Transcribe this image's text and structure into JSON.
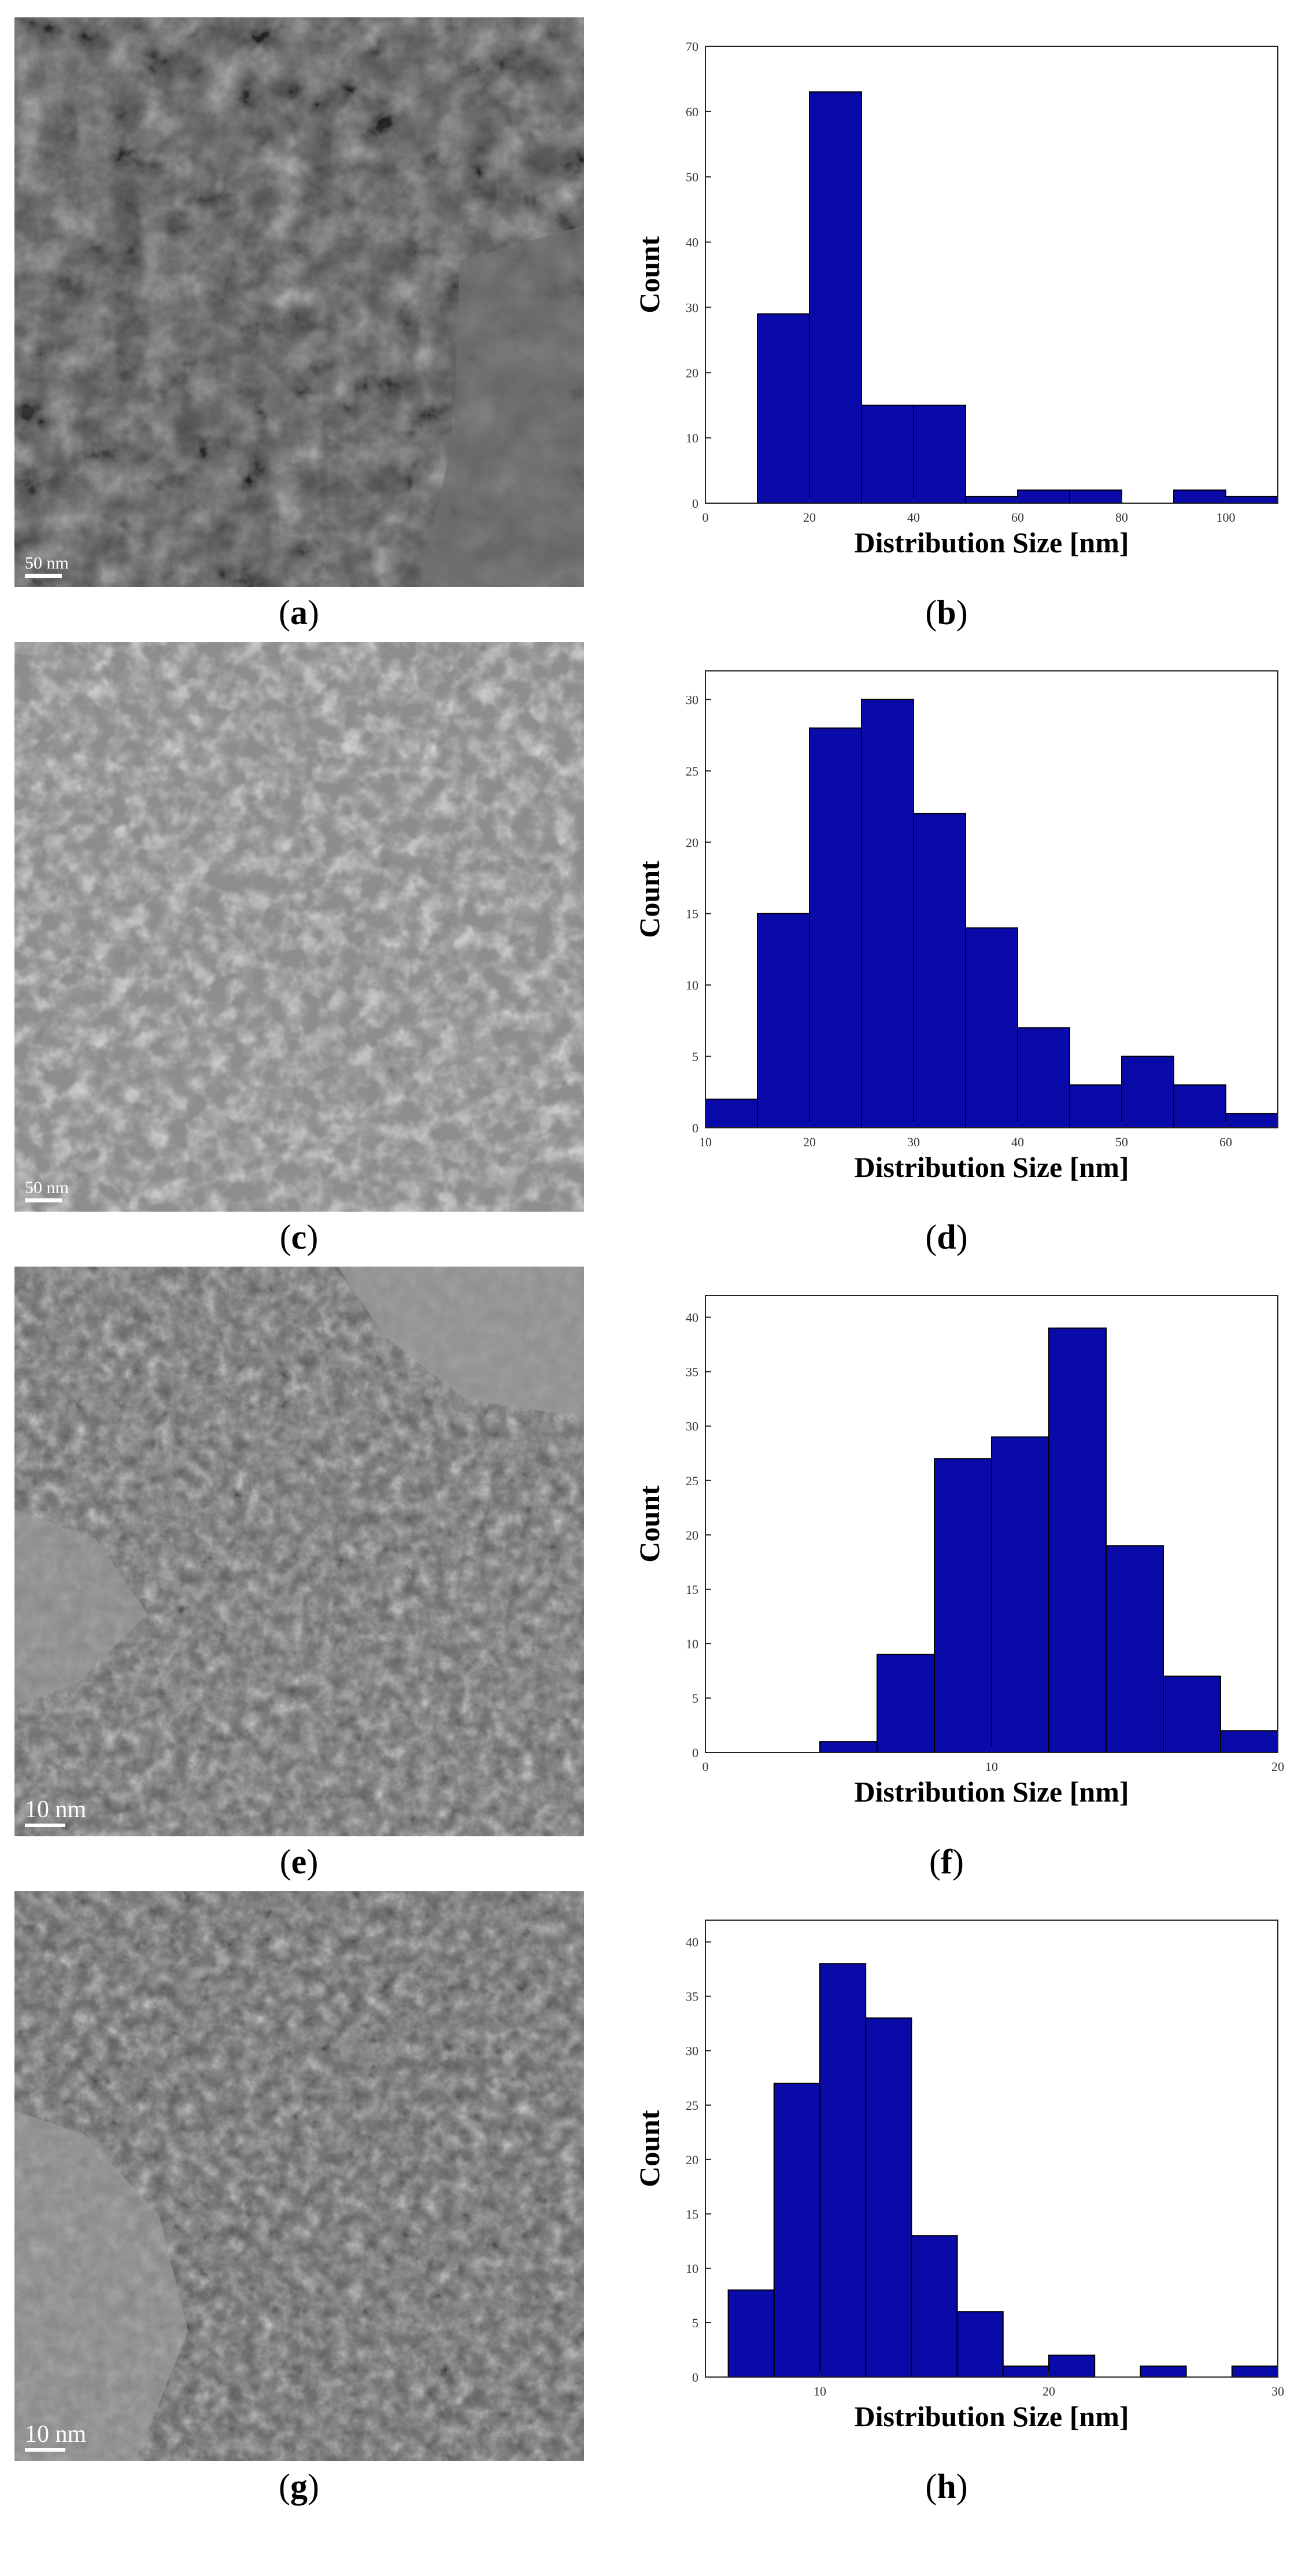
{
  "panels": [
    {
      "label": "a",
      "kind": "tem",
      "scale_bar": "50 nm"
    },
    {
      "label": "b",
      "kind": "histogram"
    },
    {
      "label": "c",
      "kind": "tem",
      "scale_bar": "50 nm"
    },
    {
      "label": "d",
      "kind": "histogram"
    },
    {
      "label": "e",
      "kind": "tem",
      "scale_bar": "10 nm"
    },
    {
      "label": "f",
      "kind": "histogram"
    },
    {
      "label": "g",
      "kind": "tem",
      "scale_bar": "10 nm"
    },
    {
      "label": "h",
      "kind": "histogram"
    }
  ],
  "colors": {
    "bar_fill": "#0a0aa8",
    "bar_edge": "#000000"
  },
  "chart_data": [
    {
      "panel": "b",
      "type": "bar",
      "xlabel": "Distribution Size [nm]",
      "ylabel": "Count",
      "xlim": [
        0,
        110
      ],
      "ylim": [
        0,
        70
      ],
      "xticks": [
        0,
        20,
        40,
        60,
        80,
        100
      ],
      "yticks": [
        0,
        10,
        20,
        30,
        40,
        50,
        60,
        70
      ],
      "bin_edges": [
        10,
        20,
        30,
        40,
        50,
        60,
        70,
        80,
        90,
        100,
        110
      ],
      "values": [
        29,
        63,
        15,
        15,
        1,
        2,
        2,
        0,
        2,
        1
      ]
    },
    {
      "panel": "d",
      "type": "bar",
      "xlabel": "Distribution Size [nm]",
      "ylabel": "Count",
      "xlim": [
        10,
        65
      ],
      "ylim": [
        0,
        32
      ],
      "xticks": [
        10,
        20,
        30,
        40,
        50,
        60
      ],
      "yticks": [
        0,
        5,
        10,
        15,
        20,
        25,
        30
      ],
      "bin_edges": [
        10,
        15,
        20,
        25,
        30,
        35,
        40,
        45,
        50,
        55,
        60,
        65
      ],
      "values": [
        2,
        15,
        28,
        30,
        22,
        14,
        7,
        3,
        5,
        3,
        1
      ]
    },
    {
      "panel": "f",
      "type": "bar",
      "xlabel": "Distribution Size [nm]",
      "ylabel": "Count",
      "xlim": [
        0,
        20
      ],
      "ylim": [
        0,
        42
      ],
      "xticks": [
        0,
        10,
        20
      ],
      "yticks": [
        0,
        5,
        10,
        15,
        20,
        25,
        30,
        35,
        40
      ],
      "bin_edges": [
        4,
        6,
        8,
        10,
        12,
        14,
        16,
        18,
        20
      ],
      "values": [
        1,
        9,
        27,
        29,
        39,
        19,
        7,
        2
      ]
    },
    {
      "panel": "h",
      "type": "bar",
      "xlabel": "Distribution Size [nm]",
      "ylabel": "Count",
      "xlim": [
        5,
        30
      ],
      "ylim": [
        0,
        42
      ],
      "xticks": [
        10,
        20,
        30
      ],
      "yticks": [
        0,
        5,
        10,
        15,
        20,
        25,
        30,
        35,
        40
      ],
      "bin_edges": [
        6,
        8,
        10,
        12,
        14,
        16,
        18,
        20,
        22,
        24,
        26,
        28,
        30
      ],
      "values": [
        8,
        27,
        38,
        33,
        13,
        6,
        1,
        2,
        0,
        1,
        0,
        1
      ]
    }
  ]
}
